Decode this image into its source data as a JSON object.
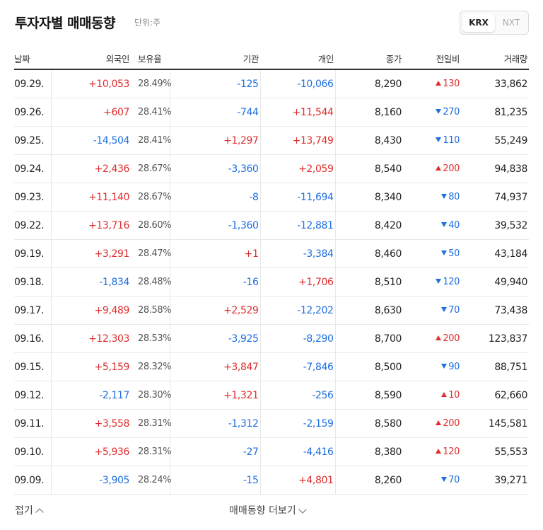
{
  "header": {
    "title": "투자자별 매매동향",
    "unit": "단위:주"
  },
  "market_toggle": {
    "options": [
      "KRX",
      "NXT"
    ],
    "selected": "KRX"
  },
  "columns": {
    "date": "날짜",
    "foreign": "외국인",
    "ratio": "보유율",
    "inst": "기관",
    "indv": "개인",
    "close": "종가",
    "change": "전일비",
    "volume": "거래량"
  },
  "rows": [
    {
      "date": "09.29.",
      "foreign": "+10,053",
      "ratio": "28.49%",
      "inst": "-125",
      "indv": "-10,066",
      "close": "8,290",
      "change": "130",
      "dir": "up",
      "volume": "33,862"
    },
    {
      "date": "09.26.",
      "foreign": "+607",
      "ratio": "28.41%",
      "inst": "-744",
      "indv": "+11,544",
      "close": "8,160",
      "change": "270",
      "dir": "down",
      "volume": "81,235"
    },
    {
      "date": "09.25.",
      "foreign": "-14,504",
      "ratio": "28.41%",
      "inst": "+1,297",
      "indv": "+13,749",
      "close": "8,430",
      "change": "110",
      "dir": "down",
      "volume": "55,249"
    },
    {
      "date": "09.24.",
      "foreign": "+2,436",
      "ratio": "28.67%",
      "inst": "-3,360",
      "indv": "+2,059",
      "close": "8,540",
      "change": "200",
      "dir": "up",
      "volume": "94,838"
    },
    {
      "date": "09.23.",
      "foreign": "+11,140",
      "ratio": "28.67%",
      "inst": "-8",
      "indv": "-11,694",
      "close": "8,340",
      "change": "80",
      "dir": "down",
      "volume": "74,937"
    },
    {
      "date": "09.22.",
      "foreign": "+13,716",
      "ratio": "28.60%",
      "inst": "-1,360",
      "indv": "-12,881",
      "close": "8,420",
      "change": "40",
      "dir": "down",
      "volume": "39,532"
    },
    {
      "date": "09.19.",
      "foreign": "+3,291",
      "ratio": "28.47%",
      "inst": "+1",
      "indv": "-3,384",
      "close": "8,460",
      "change": "50",
      "dir": "down",
      "volume": "43,184"
    },
    {
      "date": "09.18.",
      "foreign": "-1,834",
      "ratio": "28.48%",
      "inst": "-16",
      "indv": "+1,706",
      "close": "8,510",
      "change": "120",
      "dir": "down",
      "volume": "49,940"
    },
    {
      "date": "09.17.",
      "foreign": "+9,489",
      "ratio": "28.58%",
      "inst": "+2,529",
      "indv": "-12,202",
      "close": "8,630",
      "change": "70",
      "dir": "down",
      "volume": "73,438"
    },
    {
      "date": "09.16.",
      "foreign": "+12,303",
      "ratio": "28.53%",
      "inst": "-3,925",
      "indv": "-8,290",
      "close": "8,700",
      "change": "200",
      "dir": "up",
      "volume": "123,837"
    },
    {
      "date": "09.15.",
      "foreign": "+5,159",
      "ratio": "28.32%",
      "inst": "+3,847",
      "indv": "-7,846",
      "close": "8,500",
      "change": "90",
      "dir": "down",
      "volume": "88,751"
    },
    {
      "date": "09.12.",
      "foreign": "-2,117",
      "ratio": "28.30%",
      "inst": "+1,321",
      "indv": "-256",
      "close": "8,590",
      "change": "10",
      "dir": "up",
      "volume": "62,660"
    },
    {
      "date": "09.11.",
      "foreign": "+3,558",
      "ratio": "28.31%",
      "inst": "-1,312",
      "indv": "-2,159",
      "close": "8,580",
      "change": "200",
      "dir": "up",
      "volume": "145,581"
    },
    {
      "date": "09.10.",
      "foreign": "+5,936",
      "ratio": "28.31%",
      "inst": "-27",
      "indv": "-4,416",
      "close": "8,380",
      "change": "120",
      "dir": "up",
      "volume": "55,553"
    },
    {
      "date": "09.09.",
      "foreign": "-3,905",
      "ratio": "28.24%",
      "inst": "-15",
      "indv": "+4,801",
      "close": "8,260",
      "change": "70",
      "dir": "down",
      "volume": "39,271"
    }
  ],
  "footer": {
    "collapse_label": "접기",
    "more_label": "매매동향 더보기"
  },
  "colors": {
    "up": "#e02d2d",
    "down": "#1e6fe0"
  }
}
